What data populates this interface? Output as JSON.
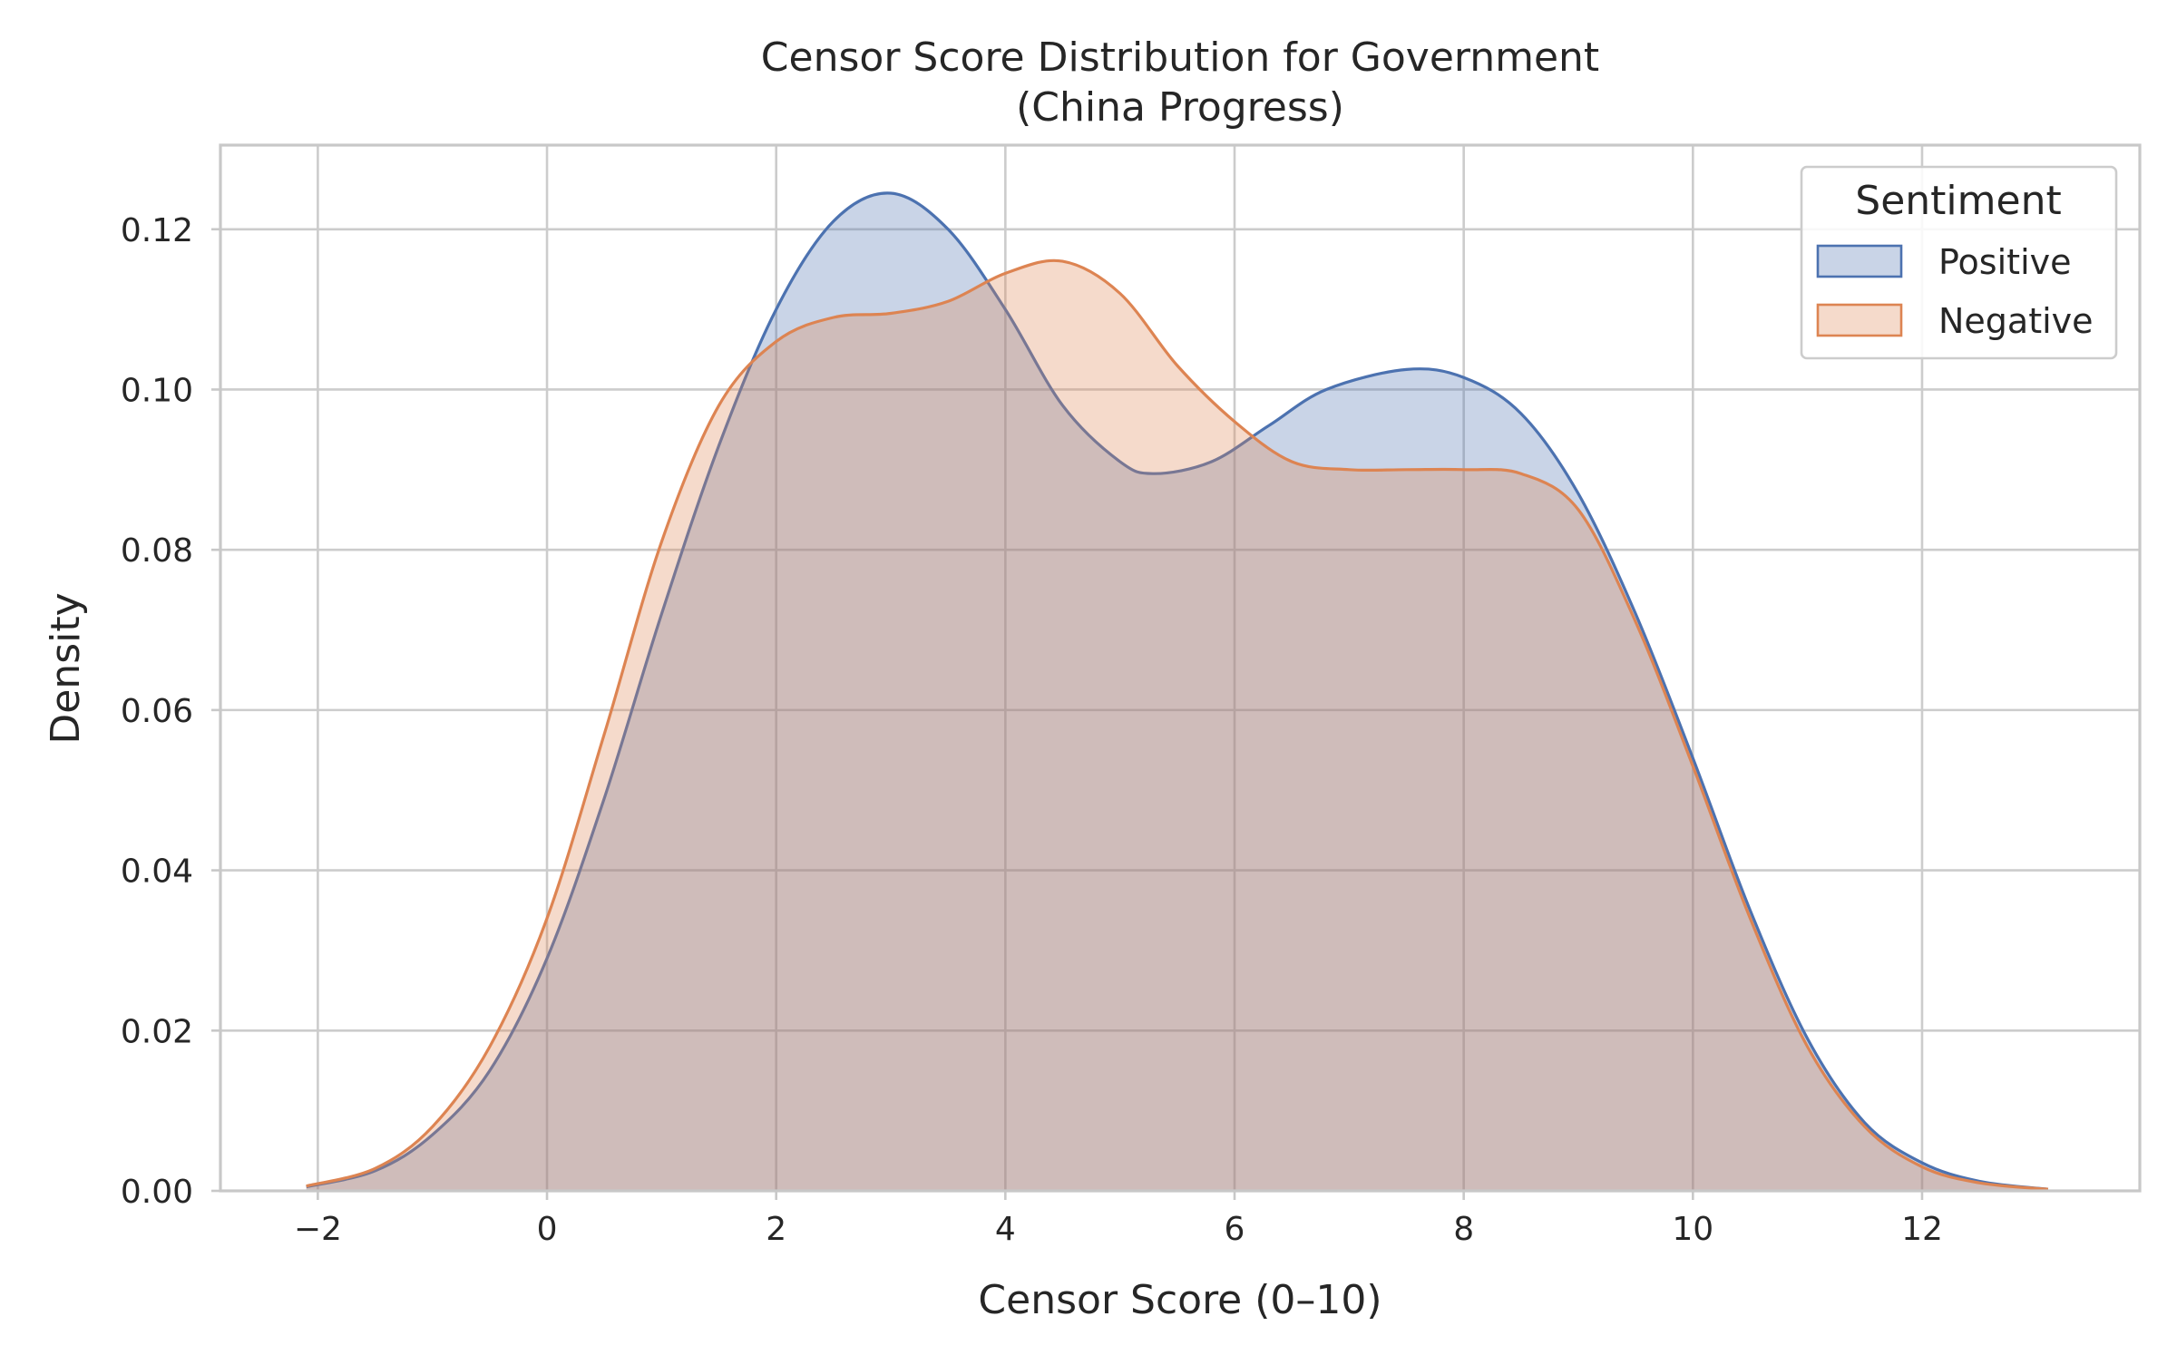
{
  "chart_data": {
    "type": "area",
    "title_line1": "Censor Score Distribution for Government",
    "title_line2": "(China Progress)",
    "xlabel": "Censor Score (0–10)",
    "ylabel": "Density",
    "xlim": [
      -2.85,
      13.9
    ],
    "ylim": [
      0,
      0.1305
    ],
    "x_ticks": [
      -2,
      0,
      2,
      4,
      6,
      8,
      10,
      12
    ],
    "x_tick_labels": [
      "−2",
      "0",
      "2",
      "4",
      "6",
      "8",
      "10",
      "12"
    ],
    "y_ticks": [
      0,
      0.02,
      0.04,
      0.06,
      0.08,
      0.1,
      0.12
    ],
    "y_tick_labels": [
      "0.00",
      "0.02",
      "0.04",
      "0.06",
      "0.08",
      "0.10",
      "0.12"
    ],
    "grid": true,
    "legend": {
      "title": "Sentiment",
      "placement": "top-right"
    },
    "series": [
      {
        "name": "Positive",
        "color": "#4c72b0",
        "fill_color": "#4c72b0",
        "fill_opacity": 0.3,
        "x": [
          -2.1,
          -1.5,
          -1.0,
          -0.5,
          0,
          0.5,
          1.0,
          1.5,
          2.0,
          2.5,
          3.0,
          3.5,
          4.0,
          4.5,
          5.0,
          5.3,
          5.8,
          6.3,
          6.8,
          7.5,
          8.0,
          8.5,
          9.0,
          9.5,
          10.0,
          10.5,
          11.0,
          11.5,
          12.0,
          12.5,
          13.1
        ],
        "y": [
          0.0005,
          0.0025,
          0.007,
          0.015,
          0.029,
          0.049,
          0.072,
          0.093,
          0.11,
          0.121,
          0.1245,
          0.12,
          0.11,
          0.098,
          0.091,
          0.0895,
          0.091,
          0.0955,
          0.1,
          0.1025,
          0.1015,
          0.097,
          0.087,
          0.072,
          0.054,
          0.035,
          0.019,
          0.0085,
          0.0035,
          0.0012,
          0.0002
        ]
      },
      {
        "name": "Negative",
        "color": "#dd8452",
        "fill_color": "#dd8452",
        "fill_opacity": 0.3,
        "x": [
          -2.1,
          -1.5,
          -1.0,
          -0.5,
          0,
          0.5,
          1.0,
          1.5,
          2.0,
          2.5,
          3.0,
          3.5,
          4.0,
          4.5,
          5.0,
          5.5,
          6.0,
          6.5,
          7.0,
          7.5,
          8.0,
          8.5,
          9.0,
          9.5,
          10.0,
          10.5,
          11.0,
          11.5,
          12.0,
          12.5,
          13.1
        ],
        "y": [
          0.0006,
          0.0028,
          0.008,
          0.018,
          0.034,
          0.057,
          0.081,
          0.098,
          0.106,
          0.109,
          0.1095,
          0.111,
          0.1145,
          0.116,
          0.112,
          0.103,
          0.096,
          0.091,
          0.09,
          0.09,
          0.09,
          0.0895,
          0.085,
          0.071,
          0.053,
          0.034,
          0.018,
          0.008,
          0.003,
          0.001,
          0.0002
        ]
      }
    ]
  }
}
